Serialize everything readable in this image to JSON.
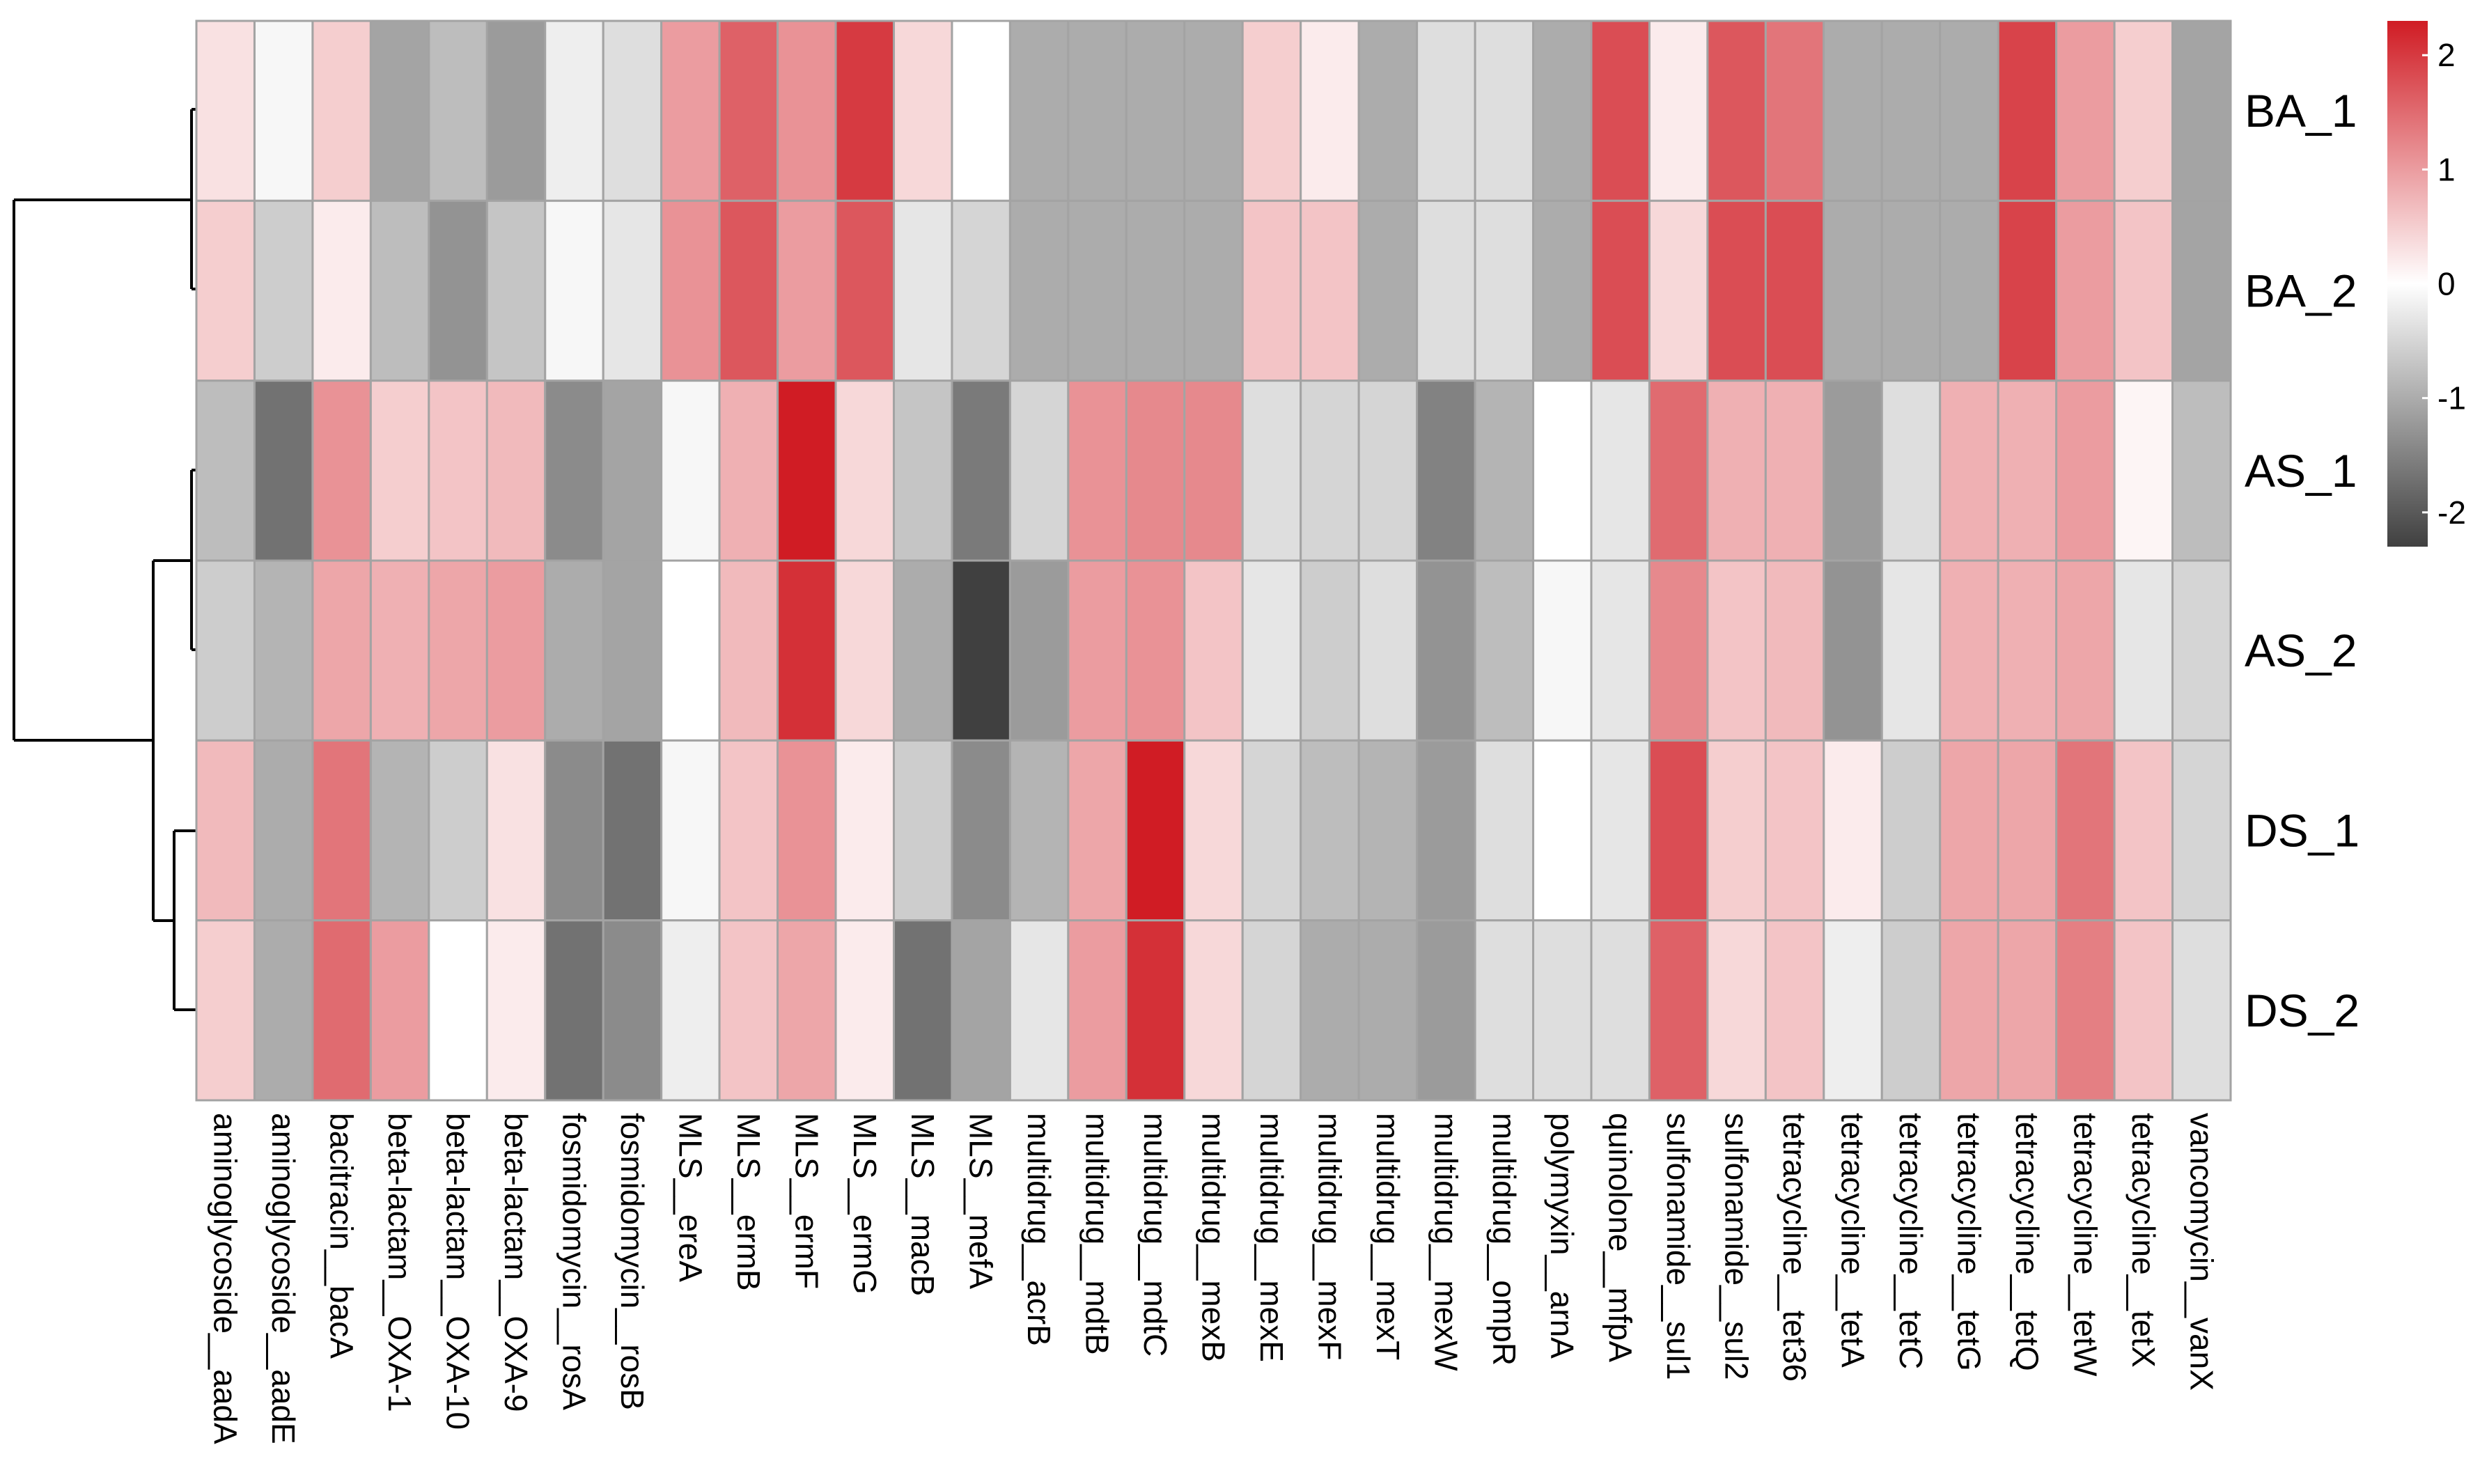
{
  "chart_data": {
    "type": "heatmap",
    "title": "",
    "rows": [
      "BA_1",
      "BA_2",
      "AS_1",
      "AS_2",
      "DS_1",
      "DS_2"
    ],
    "columns": [
      "aminoglycoside__aadA",
      "aminoglycoside__aadE",
      "bacitracin__bacA",
      "beta-lactam__OXA-1",
      "beta-lactam__OXA-10",
      "beta-lactam__OXA-9",
      "fosmidomycin__rosA",
      "fosmidomycin__rosB",
      "MLS__ereA",
      "MLS__ermB",
      "MLS__ermF",
      "MLS__ermG",
      "MLS__macB",
      "MLS__mefA",
      "multidrug__acrB",
      "multidrug__mdtB",
      "multidrug__mdtC",
      "multidrug__mexB",
      "multidrug__mexE",
      "multidrug__mexF",
      "multidrug__mexT",
      "multidrug__mexW",
      "multidrug__ompR",
      "polymyxin__arnA",
      "quinolone__mfpA",
      "sulfonamide__sul1",
      "sulfonamide__sul2",
      "tetracycline__tet36",
      "tetracycline__tetA",
      "tetracycline__tetC",
      "tetracycline__tetG",
      "tetracycline__tetQ",
      "tetracycline__tetW",
      "tetracycline__tetX",
      "vancomycin__vanX"
    ],
    "values": [
      [
        0.3,
        -0.1,
        0.5,
        -1.1,
        -0.8,
        -1.2,
        -0.2,
        -0.4,
        1.0,
        1.6,
        1.1,
        2.0,
        0.4,
        0.0,
        -1.0,
        -1.0,
        -1.0,
        -1.0,
        0.5,
        0.2,
        -1.0,
        -0.4,
        -0.4,
        -1.0,
        1.8,
        0.2,
        1.7,
        1.4,
        -1.0,
        -1.0,
        -1.0,
        1.9,
        1.0,
        0.5,
        -1.1
      ],
      [
        0.5,
        -0.6,
        0.2,
        -0.8,
        -1.3,
        -0.7,
        -0.1,
        -0.3,
        1.1,
        1.7,
        1.0,
        1.7,
        -0.3,
        -0.5,
        -1.0,
        -1.0,
        -1.0,
        -1.0,
        0.6,
        0.6,
        -1.0,
        -0.4,
        -0.4,
        -1.0,
        1.8,
        0.4,
        1.8,
        1.8,
        -1.0,
        -1.0,
        -1.0,
        1.9,
        1.0,
        0.6,
        -1.1
      ],
      [
        -0.8,
        -1.7,
        1.1,
        0.5,
        0.6,
        0.7,
        -1.4,
        -1.1,
        -0.1,
        0.8,
        2.3,
        0.4,
        -0.7,
        -1.6,
        -0.5,
        1.1,
        1.2,
        1.2,
        -0.4,
        -0.5,
        -0.5,
        -1.5,
        -0.9,
        0.0,
        -0.3,
        1.5,
        0.8,
        0.8,
        -1.2,
        -0.4,
        0.8,
        0.8,
        1.0,
        0.1,
        -0.8
      ],
      [
        -0.6,
        -0.9,
        0.9,
        0.8,
        0.9,
        1.0,
        -1.0,
        -1.1,
        0.0,
        0.7,
        2.1,
        0.4,
        -1.0,
        -2.3,
        -1.2,
        1.0,
        1.1,
        0.6,
        -0.3,
        -0.6,
        -0.4,
        -1.3,
        -0.8,
        -0.1,
        -0.3,
        1.2,
        0.6,
        0.7,
        -1.3,
        -0.3,
        0.8,
        0.8,
        0.9,
        -0.3,
        -0.5
      ],
      [
        0.7,
        -1.0,
        1.4,
        -0.9,
        -0.6,
        0.3,
        -1.4,
        -1.7,
        -0.1,
        0.6,
        1.1,
        0.2,
        -0.6,
        -1.4,
        -0.9,
        0.9,
        2.3,
        0.4,
        -0.5,
        -0.8,
        -0.9,
        -1.2,
        -0.4,
        0.0,
        -0.3,
        1.8,
        0.5,
        0.6,
        0.2,
        -0.6,
        0.9,
        0.9,
        1.4,
        0.6,
        -0.5
      ],
      [
        0.5,
        -1.0,
        1.5,
        1.0,
        0.0,
        0.2,
        -1.7,
        -1.4,
        -0.2,
        0.6,
        0.9,
        0.2,
        -1.7,
        -1.1,
        -0.3,
        1.0,
        2.1,
        0.4,
        -0.5,
        -1.0,
        -1.0,
        -1.2,
        -0.4,
        -0.4,
        -0.4,
        1.6,
        0.4,
        0.6,
        -0.2,
        -0.6,
        0.9,
        0.9,
        1.3,
        0.6,
        -0.4
      ]
    ],
    "color_scale": {
      "low": "#404040",
      "mid": "#ffffff",
      "high": "#d01c24",
      "range": [
        -2.3,
        2.3
      ]
    },
    "legend": {
      "position": "top-right",
      "ticks": [
        "2",
        "1",
        "0",
        "-1",
        "-2"
      ],
      "tick_values": [
        2,
        1,
        0,
        -1,
        -2
      ]
    },
    "dendrogram": "left",
    "grid_color": "#a3a3a3"
  }
}
